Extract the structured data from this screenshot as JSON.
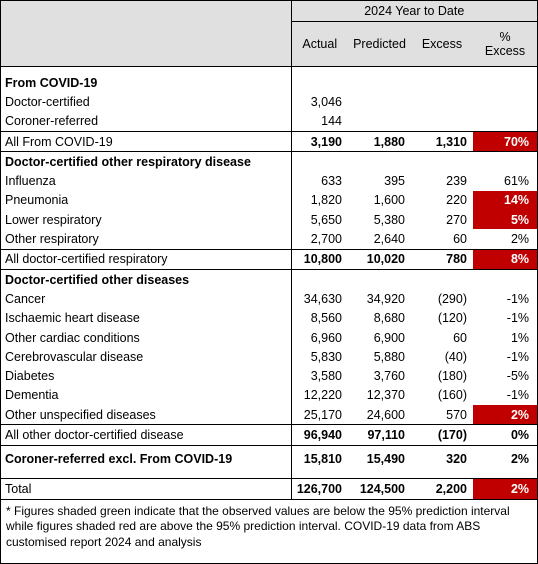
{
  "header": {
    "period": "2024 Year to Date",
    "columns": [
      "Actual",
      "Predicted",
      "Excess",
      "%",
      "Excess"
    ]
  },
  "rows": {
    "covid_title": "From COVID-19",
    "covid_doc": {
      "label": "Doctor-certified",
      "actual": "3,046"
    },
    "covid_cor": {
      "label": "Coroner-referred",
      "actual": "144"
    },
    "covid_all": {
      "label": "All From COVID-19",
      "actual": "3,190",
      "predicted": "1,880",
      "excess": "1,310",
      "pct": "70%"
    },
    "resp_title": "Doctor-certified other respiratory disease",
    "influenza": {
      "label": "Influenza",
      "actual": "633",
      "predicted": "395",
      "excess": "239",
      "pct": "61%"
    },
    "pneumonia": {
      "label": "Pneumonia",
      "actual": "1,820",
      "predicted": "1,600",
      "excess": "220",
      "pct": "14%"
    },
    "lower_resp": {
      "label": "Lower respiratory",
      "actual": "5,650",
      "predicted": "5,380",
      "excess": "270",
      "pct": "5%"
    },
    "other_resp": {
      "label": "Other respiratory",
      "actual": "2,700",
      "predicted": "2,640",
      "excess": "60",
      "pct": "2%"
    },
    "all_resp": {
      "label": "All doctor-certified respiratory",
      "actual": "10,800",
      "predicted": "10,020",
      "excess": "780",
      "pct": "8%"
    },
    "other_title": "Doctor-certified other diseases",
    "cancer": {
      "label": "Cancer",
      "actual": "34,630",
      "predicted": "34,920",
      "excess": "(290)",
      "pct": "-1%"
    },
    "ischaemic": {
      "label": "Ischaemic heart disease",
      "actual": "8,560",
      "predicted": "8,680",
      "excess": "(120)",
      "pct": "-1%"
    },
    "cardiac": {
      "label": "Other cardiac conditions",
      "actual": "6,960",
      "predicted": "6,900",
      "excess": "60",
      "pct": "1%"
    },
    "cerebro": {
      "label": "Cerebrovascular disease",
      "actual": "5,830",
      "predicted": "5,880",
      "excess": "(40)",
      "pct": "-1%"
    },
    "diabetes": {
      "label": "Diabetes",
      "actual": "3,580",
      "predicted": "3,760",
      "excess": "(180)",
      "pct": "-5%"
    },
    "dementia": {
      "label": "Dementia",
      "actual": "12,220",
      "predicted": "12,370",
      "excess": "(160)",
      "pct": "-1%"
    },
    "unspecified": {
      "label": "Other unspecified diseases",
      "actual": "25,170",
      "predicted": "24,600",
      "excess": "570",
      "pct": "2%"
    },
    "all_other": {
      "label": "All other doctor-certified disease",
      "actual": "96,940",
      "predicted": "97,110",
      "excess": "(170)",
      "pct": "0%"
    },
    "coroner": {
      "label": "Coroner-referred excl. From COVID-19",
      "actual": "15,810",
      "predicted": "15,490",
      "excess": "320",
      "pct": "2%"
    },
    "total": {
      "label": "Total",
      "actual": "126,700",
      "predicted": "124,500",
      "excess": "2,200",
      "pct": "2%"
    }
  },
  "highlight_color": "#c00000",
  "note": "* Figures shaded green indicate that the observed values are below the 95% prediction interval while figures shaded red are above the 95% prediction interval.  COVID-19 data from ABS customised report 2024 and analysis"
}
